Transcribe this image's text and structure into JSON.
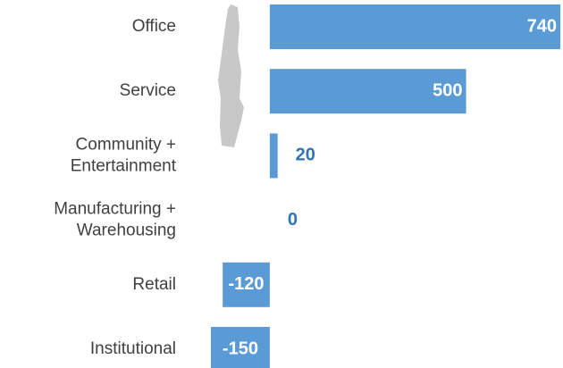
{
  "chart_data": {
    "type": "bar",
    "orientation": "horizontal",
    "categories": [
      "Office",
      "Service",
      "Community +\nEntertainment",
      "Manufacturing +\nWarehousing",
      "Retail",
      "Institutional"
    ],
    "values": [
      740,
      500,
      20,
      0,
      -120,
      -150
    ],
    "color": "#5b9bd5",
    "label_color": "#2e75b6"
  }
}
